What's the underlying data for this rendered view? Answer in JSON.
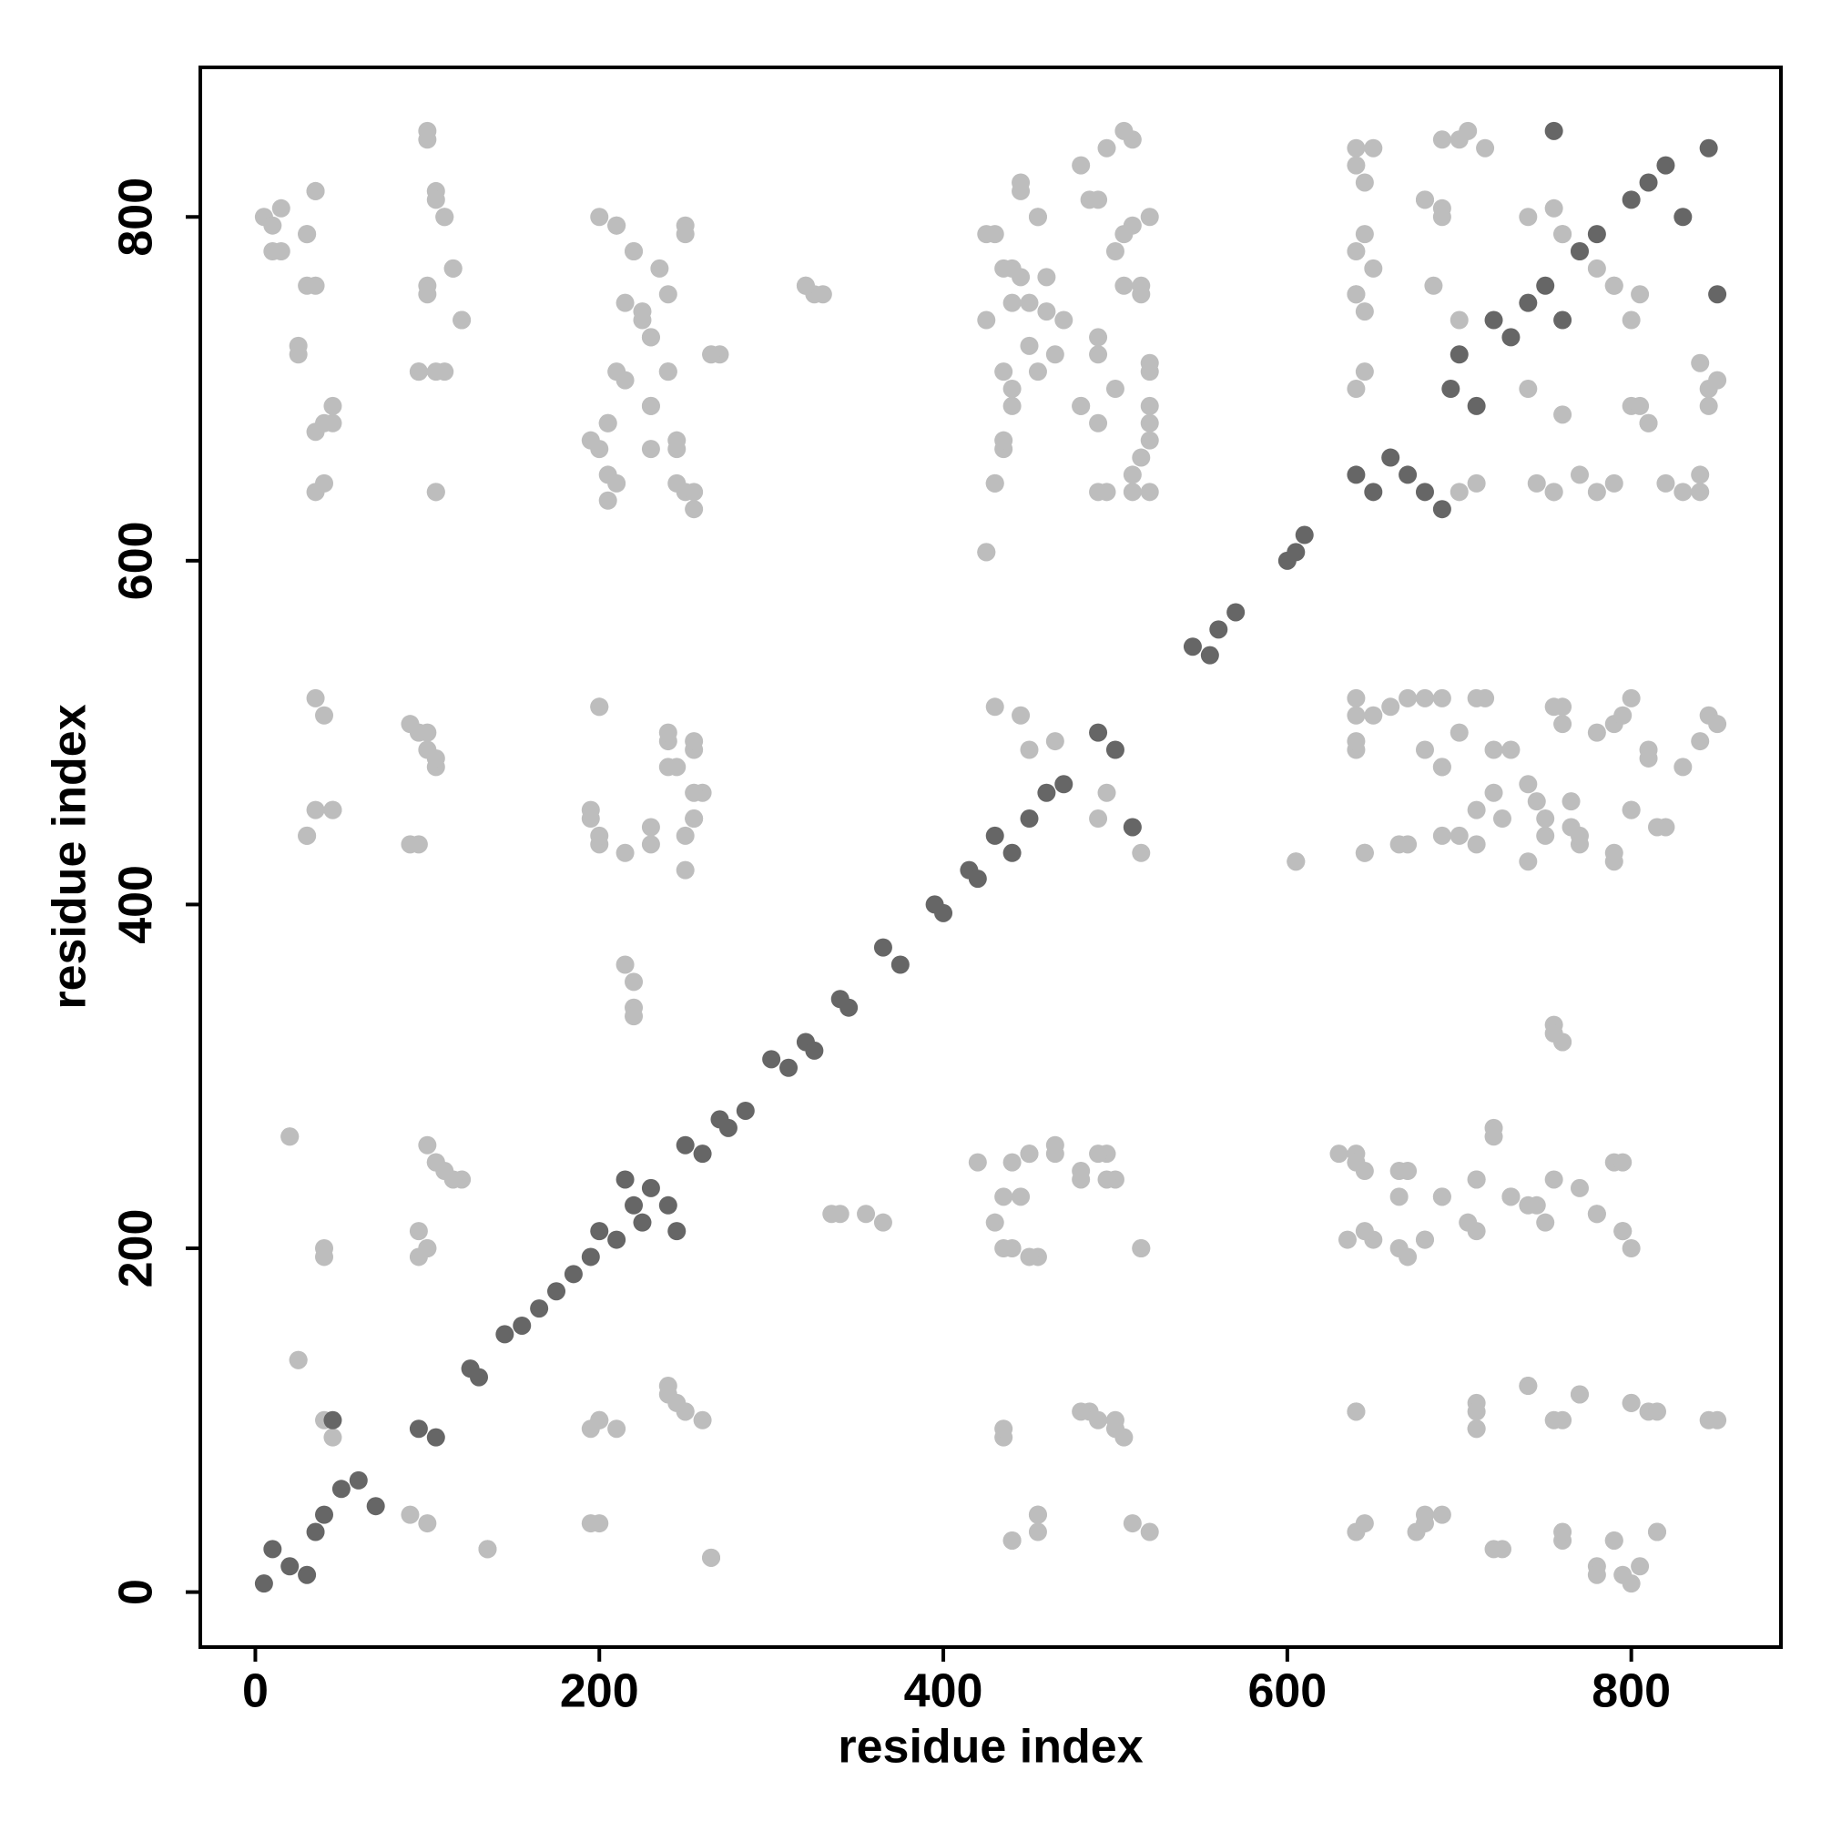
{
  "chart_data": {
    "type": "scatter",
    "x_label": "residue index",
    "y_label": "residue index",
    "xlim": [
      -32,
      887
    ],
    "ylim": [
      -32,
      887
    ],
    "xticks": [
      0,
      200,
      400,
      600,
      800
    ],
    "yticks": [
      0,
      200,
      400,
      600,
      800
    ],
    "series": [
      {
        "color": "#bdbdbd",
        "x": [
          5,
          10,
          25,
          30,
          35,
          35,
          40,
          35,
          45,
          30,
          35,
          40,
          45,
          100,
          105,
          100,
          110,
          115,
          120,
          95,
          105,
          105,
          95,
          100,
          105,
          95,
          100,
          95,
          105,
          110,
          120,
          40,
          20,
          25,
          100,
          90,
          200,
          210,
          220,
          215,
          225,
          230,
          210,
          240,
          230,
          250,
          270,
          200,
          205,
          210,
          230,
          245,
          250,
          255,
          205,
          200,
          195,
          200,
          215,
          230,
          240,
          245,
          255,
          260,
          250,
          255,
          215,
          220,
          200,
          200,
          210,
          240,
          250,
          260,
          265,
          135,
          320,
          325,
          335,
          355,
          430,
          445,
          455,
          440,
          450,
          460,
          470,
          465,
          480,
          490,
          495,
          500,
          505,
          510,
          515,
          520,
          520,
          515,
          510,
          495,
          490,
          490,
          425,
          435,
          440,
          435,
          430,
          425,
          445,
          450,
          465,
          430,
          440,
          445,
          440,
          455,
          450,
          465,
          480,
          495,
          500,
          515,
          435,
          440,
          455,
          485,
          500,
          505,
          520,
          640,
          650,
          645,
          650,
          640,
          645,
          640,
          680,
          690,
          700,
          715,
          685,
          700,
          740,
          755,
          760,
          770,
          790,
          800,
          810,
          820,
          830,
          845,
          850,
          745,
          755,
          780,
          640,
          650,
          670,
          690,
          700,
          715,
          730,
          755,
          760,
          790,
          800,
          810,
          830,
          845,
          640,
          645,
          670,
          690,
          700,
          710,
          725,
          745,
          750,
          765,
          770,
          790,
          800,
          815,
          605,
          760,
          755,
          640,
          645,
          650,
          670,
          670,
          680,
          690,
          705,
          710,
          720,
          730,
          745,
          755,
          770,
          780,
          790,
          795,
          640,
          640,
          680,
          690,
          710,
          710,
          725,
          740,
          755,
          760,
          770,
          780,
          790,
          795,
          800,
          805,
          810,
          815,
          845,
          800,
          780,
          720,
          790,
          815,
          760,
          645,
          675,
          680,
          440,
          455,
          510,
          455,
          850,
          815,
          760,
          800,
          770,
          740,
          710,
          710,
          640,
          500,
          490,
          480,
          435,
          200,
          195,
          250,
          245,
          240,
          195,
          265,
          135,
          40,
          45,
          800,
          795,
          780,
          750,
          740,
          730,
          710,
          710,
          690,
          795,
          720,
          665,
          680,
          645,
          665,
          665,
          640,
          630,
          635,
          515,
          450,
          435,
          430,
          435,
          495,
          480,
          490,
          465,
          420,
          450,
          365,
          340,
          100,
          40,
          95,
          115,
          105,
          100,
          20,
          25,
          760,
          755,
          220,
          220,
          790,
          820,
          800,
          770,
          750,
          765,
          740,
          720,
          690,
          810,
          840,
          780,
          850,
          795,
          760,
          710,
          680,
          660,
          640,
          640,
          680,
          720,
          740,
          710,
          690,
          665,
          645,
          605,
          510,
          490,
          495,
          515,
          250,
          230,
          200,
          195,
          255,
          255,
          240,
          255,
          240,
          200,
          90,
          30,
          45,
          105,
          100,
          90,
          35,
          840,
          840,
          790,
          770,
          755,
          710,
          700,
          810,
          805,
          845,
          840,
          760,
          740,
          800,
          805,
          790,
          780,
          760,
          690,
          680,
          645,
          640,
          690,
          705,
          645,
          640,
          640,
          520,
          510,
          520,
          520,
          500,
          520,
          490,
          515,
          505,
          505,
          520,
          485,
          480,
          510,
          490,
          430,
          435,
          480,
          440,
          455,
          450,
          460,
          440,
          445,
          435,
          425,
          455,
          445,
          425,
          320,
          330,
          255,
          245,
          205,
          245,
          195,
          205,
          230,
          215,
          240,
          265,
          230,
          225,
          240,
          235,
          220,
          250,
          210,
          105,
          35,
          40,
          45,
          110,
          95,
          25,
          120,
          100,
          30,
          115,
          15,
          30,
          10,
          110,
          15,
          105,
          35,
          100
        ],
        "y": [
          800,
          780,
          720,
          790,
          815,
          760,
          645,
          675,
          680,
          440,
          455,
          510,
          455,
          850,
          815,
          760,
          800,
          770,
          740,
          710,
          710,
          640,
          500,
          490,
          480,
          435,
          200,
          195,
          250,
          245,
          240,
          195,
          265,
          135,
          40,
          45,
          800,
          795,
          780,
          750,
          740,
          730,
          710,
          710,
          690,
          795,
          720,
          665,
          680,
          645,
          665,
          665,
          640,
          630,
          635,
          515,
          450,
          435,
          430,
          435,
          495,
          480,
          490,
          465,
          420,
          450,
          365,
          340,
          100,
          40,
          95,
          115,
          105,
          100,
          20,
          25,
          760,
          755,
          220,
          220,
          790,
          820,
          800,
          770,
          750,
          765,
          740,
          720,
          690,
          810,
          840,
          780,
          850,
          795,
          760,
          710,
          680,
          660,
          640,
          640,
          680,
          720,
          740,
          710,
          690,
          665,
          645,
          605,
          510,
          490,
          495,
          515,
          250,
          230,
          200,
          195,
          255,
          255,
          240,
          255,
          240,
          200,
          90,
          30,
          45,
          105,
          100,
          90,
          35,
          840,
          840,
          790,
          770,
          755,
          710,
          700,
          810,
          805,
          845,
          840,
          760,
          740,
          800,
          805,
          790,
          780,
          760,
          690,
          680,
          645,
          640,
          690,
          705,
          645,
          640,
          640,
          520,
          510,
          520,
          520,
          500,
          520,
          490,
          515,
          505,
          505,
          520,
          485,
          480,
          510,
          490,
          430,
          435,
          480,
          440,
          455,
          450,
          460,
          440,
          445,
          435,
          425,
          455,
          445,
          425,
          320,
          330,
          255,
          245,
          205,
          245,
          195,
          205,
          230,
          215,
          240,
          265,
          230,
          225,
          240,
          235,
          220,
          250,
          210,
          105,
          35,
          40,
          45,
          110,
          95,
          25,
          120,
          100,
          30,
          115,
          15,
          30,
          10,
          110,
          15,
          105,
          35,
          100,
          5,
          10,
          25,
          30,
          35,
          35,
          40,
          35,
          45,
          30,
          35,
          40,
          45,
          100,
          105,
          100,
          110,
          115,
          120,
          95,
          105,
          105,
          95,
          100,
          105,
          95,
          100,
          95,
          105,
          110,
          120,
          40,
          20,
          25,
          100,
          90,
          200,
          210,
          220,
          215,
          225,
          230,
          210,
          240,
          230,
          250,
          270,
          200,
          205,
          210,
          230,
          245,
          250,
          255,
          205,
          200,
          195,
          200,
          215,
          230,
          240,
          245,
          255,
          260,
          250,
          255,
          215,
          220,
          200,
          200,
          210,
          240,
          250,
          260,
          265,
          135,
          320,
          325,
          335,
          355,
          430,
          445,
          455,
          440,
          450,
          460,
          470,
          465,
          480,
          490,
          495,
          500,
          505,
          510,
          515,
          520,
          520,
          515,
          510,
          495,
          490,
          490,
          425,
          435,
          440,
          435,
          430,
          425,
          445,
          450,
          465,
          430,
          440,
          445,
          440,
          455,
          450,
          465,
          480,
          495,
          500,
          515,
          435,
          440,
          455,
          485,
          500,
          505,
          520,
          640,
          650,
          645,
          650,
          640,
          645,
          640,
          680,
          690,
          700,
          715,
          685,
          700,
          740,
          755,
          760,
          770,
          790,
          800,
          810,
          820,
          830,
          845,
          850,
          745,
          755,
          780,
          640,
          650,
          670,
          690,
          700,
          715,
          730,
          755,
          760,
          790,
          800,
          810,
          830,
          845,
          640,
          645,
          670,
          690,
          700,
          710,
          725,
          745,
          750,
          765,
          770,
          790,
          800,
          815,
          605,
          760,
          755,
          640,
          645,
          650,
          670,
          670,
          680,
          690,
          705,
          710,
          720,
          730,
          745,
          755,
          770,
          780,
          790,
          795,
          640,
          640,
          680,
          690,
          710,
          710,
          725,
          740,
          755,
          760,
          770,
          780,
          790,
          795,
          800,
          805,
          810,
          815,
          845
        ]
      },
      {
        "color": "#666666",
        "x": [
          5,
          10,
          20,
          30,
          35,
          40,
          45,
          50,
          60,
          70,
          95,
          105,
          125,
          130,
          145,
          155,
          165,
          175,
          185,
          195,
          200,
          210,
          215,
          220,
          225,
          230,
          240,
          245,
          250,
          260,
          270,
          275,
          285,
          300,
          310,
          320,
          325,
          340,
          345,
          365,
          375,
          395,
          400,
          415,
          420,
          430,
          440,
          450,
          460,
          470,
          490,
          500,
          510,
          545,
          555,
          560,
          570,
          600,
          605,
          610,
          640,
          650,
          660,
          670,
          680,
          690,
          695,
          700,
          710,
          720,
          730,
          740,
          750,
          760,
          770,
          780,
          800,
          810,
          820,
          830,
          845,
          850,
          755
        ],
        "y": [
          5,
          25,
          15,
          10,
          35,
          45,
          100,
          60,
          65,
          50,
          95,
          90,
          130,
          125,
          150,
          155,
          165,
          175,
          185,
          195,
          210,
          205,
          240,
          225,
          215,
          235,
          225,
          210,
          260,
          255,
          275,
          270,
          280,
          310,
          305,
          320,
          315,
          345,
          340,
          375,
          365,
          400,
          395,
          420,
          415,
          440,
          430,
          450,
          465,
          470,
          500,
          490,
          445,
          550,
          545,
          560,
          570,
          600,
          605,
          615,
          650,
          640,
          660,
          650,
          640,
          630,
          700,
          720,
          690,
          740,
          730,
          750,
          760,
          740,
          780,
          790,
          810,
          820,
          830,
          800,
          840,
          755,
          850
        ]
      }
    ]
  }
}
